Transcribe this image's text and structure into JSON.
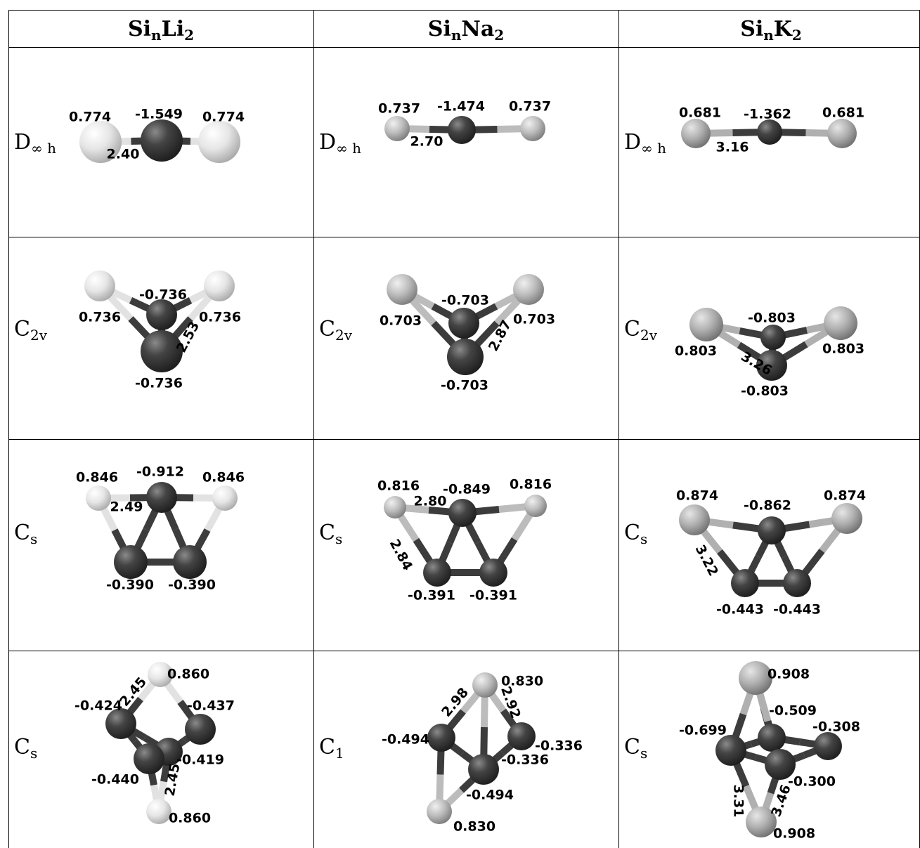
{
  "table": {
    "header": [
      [
        "Si",
        "n",
        "Li",
        "2"
      ],
      [
        "Si",
        "n",
        "Na",
        "2"
      ],
      [
        "Si",
        "n",
        "K",
        "2"
      ]
    ],
    "rows": [
      [
        {
          "symmetry": [
            "D",
            "∞ h"
          ],
          "labels": [
            "0.774",
            "-1.549",
            "0.774",
            "2.40"
          ]
        },
        {
          "symmetry": [
            "D",
            "∞ h"
          ],
          "labels": [
            "0.737",
            "-1.474",
            "0.737",
            "2.70"
          ]
        },
        {
          "symmetry": [
            "D",
            "∞ h"
          ],
          "labels": [
            "0.681",
            "-1.362",
            "0.681",
            "3.16"
          ]
        }
      ],
      [
        {
          "symmetry": [
            "C",
            "2v"
          ],
          "labels": [
            "-0.736",
            "0.736",
            "0.736",
            "2.53",
            "-0.736"
          ]
        },
        {
          "symmetry": [
            "C",
            "2v"
          ],
          "labels": [
            "-0.703",
            "0.703",
            "0.703",
            "2.87",
            "-0.703"
          ]
        },
        {
          "symmetry": [
            "C",
            "2v"
          ],
          "labels": [
            "-0.803",
            "0.803",
            "0.803",
            "3.26",
            "-0.803"
          ]
        }
      ],
      [
        {
          "symmetry": [
            "C",
            "s"
          ],
          "labels": [
            "0.846",
            "-0.912",
            "0.846",
            "2.49",
            "-0.390",
            "-0.390"
          ]
        },
        {
          "symmetry": [
            "C",
            "s"
          ],
          "labels": [
            "0.816",
            "-0.849",
            "0.816",
            "2.80",
            "2.84",
            "-0.391",
            "-0.391"
          ]
        },
        {
          "symmetry": [
            "C",
            "s"
          ],
          "labels": [
            "0.874",
            "-0.862",
            "0.874",
            "3.22",
            "-0.443",
            "-0.443"
          ]
        }
      ],
      [
        {
          "symmetry": [
            "C",
            "s"
          ],
          "labels": [
            "0.860",
            "-0.424",
            "-0.437",
            "2.45",
            "-0.419",
            "-0.440",
            "2.45",
            "0.860"
          ]
        },
        {
          "symmetry": [
            "C",
            "1"
          ],
          "labels": [
            "0.830",
            "2.98",
            "2.92",
            "-0.494",
            "-0.336",
            "-0.336",
            "-0.494",
            "0.830"
          ]
        },
        {
          "symmetry": [
            "C",
            "s"
          ],
          "labels": [
            "0.908",
            "-0.509",
            "-0.699",
            "-0.308",
            "-0.300",
            "3.31",
            "3.46",
            "0.908"
          ]
        }
      ]
    ]
  }
}
